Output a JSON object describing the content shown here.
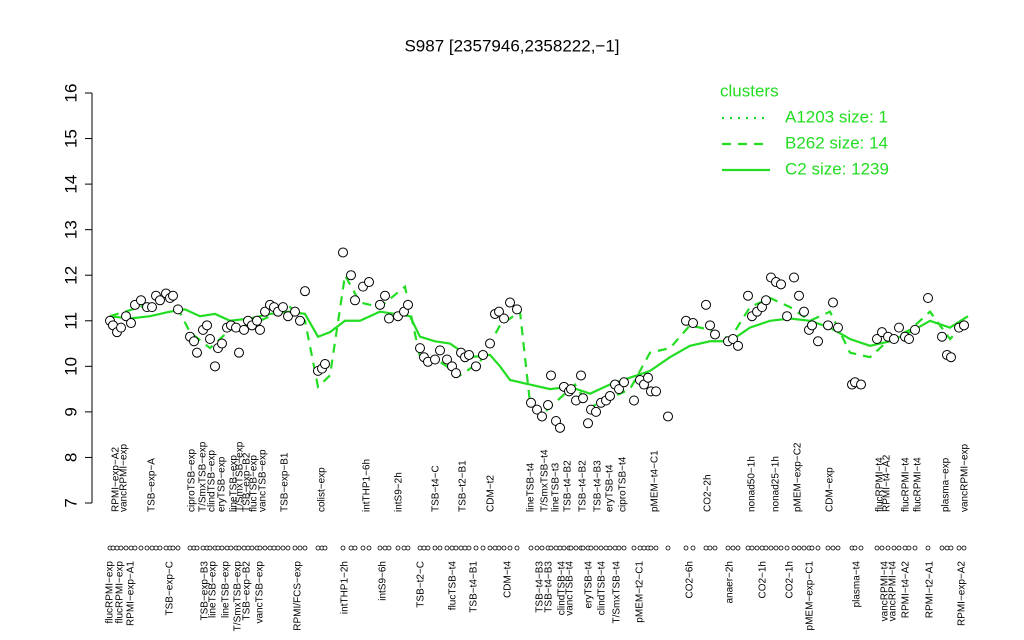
{
  "chart_data": {
    "type": "line",
    "title": "S987 [2357946,2358222,−1]",
    "legend_title": "clusters",
    "legend_color": "#22dd22",
    "xlim": [
      10,
      98
    ],
    "ylim": [
      7,
      16
    ],
    "yticks": [
      7,
      8,
      9,
      10,
      11,
      12,
      13,
      14,
      15,
      16
    ],
    "series": [
      {
        "name": "A1203 size: 1",
        "color": "#22dd22",
        "style": "dotted"
      },
      {
        "name": "B262 size: 14",
        "color": "#22dd22",
        "style": "dashed",
        "x": [
          11,
          14,
          17,
          19,
          21,
          23,
          26,
          29,
          30.5,
          31.8,
          33,
          34.5,
          36,
          38,
          40.5,
          42,
          44,
          46,
          48,
          50,
          52,
          53,
          54.5,
          56,
          57.5,
          59,
          61,
          63,
          65,
          67,
          69,
          71,
          73,
          75,
          77,
          79,
          81,
          83,
          85,
          87,
          89,
          91,
          93,
          95,
          96.8
        ],
        "values": [
          11.1,
          11.3,
          11.6,
          10.75,
          10.4,
          10.8,
          11.0,
          11.3,
          11.0,
          9.55,
          9.8,
          12.0,
          11.4,
          11.3,
          11.75,
          10.2,
          10.1,
          9.8,
          10.1,
          10.9,
          11.2,
          9.2,
          9.0,
          9.3,
          9.6,
          9.1,
          9.3,
          9.5,
          10.3,
          10.4,
          10.9,
          10.8,
          10.6,
          11.3,
          11.5,
          11.3,
          11.0,
          11.2,
          10.3,
          10.2,
          10.6,
          10.8,
          11.2,
          10.6,
          11.0
        ]
      },
      {
        "name": "C2 size: 1239",
        "color": "#22dd22",
        "style": "solid",
        "x": [
          11,
          13,
          15,
          17,
          18.5,
          20,
          21.5,
          23,
          25,
          27,
          29,
          30.5,
          31.8,
          33,
          34.5,
          36,
          38,
          39.5,
          41,
          42,
          43.5,
          45,
          47,
          49,
          50,
          51,
          53,
          55,
          57,
          59,
          61,
          63,
          65,
          67,
          69,
          71,
          73,
          75,
          77,
          79,
          81,
          83,
          85,
          87,
          89,
          91,
          93,
          95,
          96.8
        ],
        "values": [
          11.1,
          11.05,
          11.1,
          11.2,
          11.25,
          11.1,
          11.15,
          11.0,
          11.05,
          11.15,
          11.2,
          11.15,
          10.65,
          10.75,
          11.0,
          11.0,
          11.2,
          11.15,
          11.1,
          10.65,
          10.55,
          10.5,
          10.2,
          10.25,
          10.0,
          9.7,
          9.6,
          9.5,
          9.55,
          9.4,
          9.6,
          9.75,
          9.9,
          10.2,
          10.45,
          10.55,
          10.55,
          10.85,
          11.0,
          11.05,
          11.0,
          10.85,
          10.6,
          10.45,
          10.55,
          10.75,
          11.0,
          10.85,
          11.1
        ]
      }
    ],
    "points": {
      "x": [
        11,
        11.3,
        11.7,
        12.1,
        12.6,
        13.1,
        13.5,
        14.1,
        14.7,
        15.2,
        15.6,
        16,
        16.6,
        17,
        17.3,
        17.8,
        19,
        19.4,
        19.7,
        20.3,
        20.7,
        21,
        21.5,
        21.8,
        22.2,
        22.7,
        23.1,
        23.6,
        23.9,
        24.4,
        24.8,
        25.2,
        25.7,
        26,
        26.5,
        27,
        27.4,
        27.8,
        28.3,
        28.8,
        29.5,
        30,
        30.5,
        31.8,
        32.2,
        32.5,
        34.3,
        35.1,
        35.5,
        36.3,
        36.9,
        38,
        38.5,
        38.9,
        39.8,
        40.4,
        40.8,
        42,
        42.4,
        42.8,
        43.5,
        44,
        44.7,
        45.2,
        45.6,
        46.1,
        46.5,
        46.9,
        47.6,
        48.3,
        49,
        49.5,
        49.9,
        50.4,
        51,
        51.7,
        53.1,
        53.7,
        54.2,
        54.8,
        55.1,
        55.6,
        56,
        56.4,
        56.9,
        57.1,
        57.6,
        58.1,
        58.3,
        58.8,
        59.1,
        59.6,
        60.1,
        60.6,
        61,
        61.5,
        61.9,
        62.4,
        63.4,
        64,
        64.4,
        64.8,
        65.1,
        65.6,
        66.8,
        68.6,
        69.3,
        70.6,
        71,
        71.5,
        72.8,
        73.3,
        73.8,
        74.8,
        75.2,
        75.7,
        76.2,
        76.6,
        77.1,
        77.6,
        78.1,
        78.7,
        79.4,
        79.9,
        80.4,
        80.9,
        81.2,
        81.8,
        82.8,
        83.3,
        83.8,
        85.2,
        85.5,
        86.1,
        87.7,
        88.2,
        88.8,
        89.4,
        89.9,
        90.5,
        90.9,
        91.5,
        92.8,
        94.2,
        94.7,
        95.1,
        95.9,
        96.4
      ],
      "values": [
        11.0,
        10.9,
        10.75,
        10.85,
        11.1,
        10.95,
        11.35,
        11.45,
        11.3,
        11.3,
        11.55,
        11.45,
        11.6,
        11.5,
        11.55,
        11.25,
        10.65,
        10.55,
        10.3,
        10.8,
        10.9,
        10.6,
        10.0,
        10.4,
        10.5,
        10.85,
        10.9,
        10.85,
        10.3,
        10.8,
        11.0,
        10.9,
        11.0,
        10.8,
        11.2,
        11.35,
        11.3,
        11.2,
        11.3,
        11.1,
        11.2,
        11.0,
        11.65,
        9.9,
        9.95,
        10.05,
        12.5,
        12.0,
        11.45,
        11.75,
        11.85,
        11.35,
        11.55,
        11.05,
        11.1,
        11.2,
        11.35,
        10.4,
        10.2,
        10.1,
        10.15,
        10.35,
        10.15,
        10.0,
        9.85,
        10.3,
        10.2,
        10.25,
        10.0,
        10.25,
        10.5,
        11.15,
        11.2,
        11.05,
        11.4,
        11.25,
        9.2,
        9.05,
        8.9,
        9.15,
        9.8,
        8.8,
        8.65,
        9.55,
        9.45,
        9.5,
        9.25,
        9.8,
        9.3,
        8.75,
        9.05,
        9.0,
        9.2,
        9.25,
        9.35,
        9.6,
        9.5,
        9.65,
        9.25,
        9.7,
        9.6,
        9.75,
        9.45,
        9.45,
        8.9,
        11.0,
        10.95,
        11.35,
        10.9,
        10.7,
        10.55,
        10.6,
        10.45,
        11.55,
        11.1,
        11.2,
        11.3,
        11.45,
        11.95,
        11.85,
        11.8,
        11.1,
        11.95,
        11.55,
        11.2,
        10.8,
        10.9,
        10.55,
        10.9,
        11.4,
        10.85,
        9.6,
        9.65,
        9.6,
        10.6,
        10.75,
        10.65,
        10.6,
        10.85,
        10.65,
        10.6,
        10.8,
        11.5,
        10.65,
        10.25,
        10.2,
        10.85,
        10.9
      ]
    },
    "top_labels": {
      "x": [
        11.6,
        12.4,
        15.2,
        19.2,
        20.3,
        21.2,
        22.2,
        23.4,
        24,
        24.7,
        25.4,
        26.3,
        28.5,
        32.2,
        36.7,
        39.9,
        43.6,
        46.3,
        49.1,
        53.1,
        54.5,
        55.6,
        56.8,
        58.3,
        59.8,
        61,
        62.3,
        65.5,
        70.8,
        75.2,
        77.6,
        79.8,
        83,
        88,
        88.7,
        90.6,
        91.8,
        94.6,
        96.5
      ],
      "labels": [
        "RPMI−exp−A2",
        "vancRPMI−exp",
        "TSB−exp−A",
        "ciproTSB−exp",
        "T/SmxTSB−exp",
        "clindTSB−exp",
        "eryTSB−exp",
        "lineTSB−exp",
        "T/SmxTSB−exp",
        "TSB−exp−B2",
        "flucTSB−exp",
        "vancTSB−exp",
        "TSB−exp−B1",
        "colist−exp",
        "intTHP1−6h",
        "intS9−2h",
        "TSB−t4−C",
        "TSB−t2−B1",
        "CDM−t2",
        "lineTSB−t4",
        "T/SmxTSB−t4",
        "lineTSB−t3",
        "TSB−t4−B2",
        "TSB−t4−B2",
        "TSB−t4−B3",
        "eryTSB−t4",
        "ciproTSB−t4",
        "pMEM−t4−C1",
        "CO2−2h",
        "nonad50−1h",
        "nonad25−1h",
        "pMEM−exp−C2",
        "CDM−exp",
        "flucRPMI−t4",
        "RPMI−t4−A2",
        "flucRPMI−t4",
        "flucRPMI−t4",
        "plasma−exp",
        "vancRPMI−exp"
      ]
    },
    "bottom_labels": {
      "x": [
        11,
        12,
        13.1,
        17,
        20.5,
        21.3,
        22.6,
        23.8,
        24.7,
        26,
        29.8,
        34.5,
        38.3,
        42.1,
        45.3,
        47.4,
        50.8,
        54,
        54.9,
        56.2,
        57,
        58.9,
        60.2,
        61.7,
        64,
        69,
        73,
        76.3,
        79,
        81,
        85.7,
        88.5,
        89.3,
        90.6,
        93,
        96.2
      ],
      "labels": [
        "flucRPMI−exp",
        "flucRPMI−exp",
        "RPMI−exp−A1",
        "TSB−exp−C",
        "TSB−exp−B3",
        "lineTSB−exp",
        "lineTSB−exp",
        "T/SmxTSB−exp",
        "TSB−exp−B2",
        "vancTSB−exp",
        "RPMI/FCS−exp",
        "intTHP1−2h",
        "intS9−6h",
        "TSB−t2−C",
        "flucTSB−t4",
        "TSB−t4−B1",
        "CDM−t4",
        "TSB−t4−B3",
        "TSB−t4−B3",
        "clindTSB−t4",
        "vancTSB−t4",
        "eryTSB−t4",
        "clindTSB−t4",
        "T/SmxTSB−t4",
        "pMEM−t2−C1",
        "CO2−6h",
        "anaer−2h",
        "CO2−1h",
        "CO2−1h",
        "pMEM−exp−C1",
        "plasma−t4",
        "vancRPMI−t4",
        "vancRPMI−t4",
        "RPMI−t4−A2",
        "RPMI−t2−A1",
        "RPMI−exp−A2"
      ]
    }
  }
}
